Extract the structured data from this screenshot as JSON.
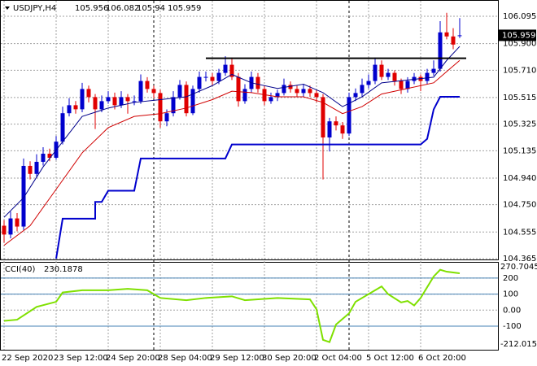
{
  "chart_data": [
    {
      "type": "candlestick",
      "symbol": "USDJPY,H4",
      "up_color": "#0000cd",
      "down_color": "#e00000",
      "open": [
        104.6,
        104.537,
        104.652,
        104.594,
        105.027,
        104.97,
        105.056,
        105.114,
        105.085,
        105.2,
        105.403,
        105.46,
        105.431,
        105.576,
        105.518,
        105.431,
        105.489,
        105.518,
        105.46,
        105.518,
        105.489,
        105.489,
        105.633,
        105.576,
        105.547,
        105.345,
        105.403,
        105.518,
        105.605,
        105.403,
        105.576,
        105.662,
        105.662,
        105.633,
        105.691,
        105.749,
        105.662,
        105.489,
        105.576,
        105.662,
        105.576,
        105.489,
        105.518,
        105.547,
        105.605,
        105.576,
        105.547,
        105.576,
        105.547,
        105.518,
        105.23,
        105.345,
        105.316,
        105.258,
        105.518,
        105.547,
        105.605,
        105.633,
        105.749,
        105.662,
        105.691,
        105.633,
        105.576,
        105.633,
        105.662,
        105.633,
        105.691,
        105.72,
        105.98,
        105.951,
        105.956
      ],
      "high": [
        104.64,
        104.7,
        104.69,
        105.08,
        105.06,
        105.11,
        105.16,
        105.15,
        105.24,
        105.45,
        105.51,
        105.49,
        105.62,
        105.6,
        105.54,
        105.53,
        105.56,
        105.55,
        105.56,
        105.54,
        105.53,
        105.68,
        105.66,
        105.6,
        105.57,
        105.43,
        105.56,
        105.64,
        105.63,
        105.6,
        105.7,
        105.7,
        105.69,
        105.72,
        105.81,
        105.8,
        105.69,
        105.61,
        105.7,
        105.69,
        105.6,
        105.55,
        105.57,
        105.65,
        105.63,
        105.6,
        105.61,
        105.6,
        105.57,
        105.54,
        105.37,
        105.38,
        105.34,
        105.55,
        105.58,
        105.65,
        105.68,
        105.8,
        105.78,
        105.72,
        105.71,
        105.65,
        105.66,
        105.69,
        105.68,
        105.72,
        105.78,
        106.06,
        106.12,
        106.01,
        106.082
      ],
      "low": [
        104.48,
        104.51,
        104.56,
        104.57,
        104.93,
        104.95,
        105.03,
        105.06,
        105.07,
        105.18,
        105.38,
        105.4,
        105.41,
        105.48,
        105.29,
        105.41,
        105.47,
        105.43,
        105.44,
        105.4,
        105.46,
        105.47,
        105.55,
        105.51,
        105.3,
        105.31,
        105.38,
        105.5,
        105.38,
        105.39,
        105.55,
        105.63,
        105.6,
        105.61,
        105.67,
        105.64,
        105.45,
        105.47,
        105.55,
        105.55,
        105.46,
        105.47,
        105.49,
        105.53,
        105.55,
        105.52,
        105.52,
        105.52,
        105.48,
        104.93,
        105.13,
        105.28,
        105.22,
        105.24,
        105.49,
        105.52,
        105.58,
        105.61,
        105.64,
        105.64,
        105.6,
        105.54,
        105.55,
        105.61,
        105.56,
        105.61,
        105.67,
        105.7,
        105.93,
        105.86,
        105.94
      ],
      "close": [
        104.537,
        104.652,
        104.594,
        105.027,
        104.97,
        105.056,
        105.114,
        105.085,
        105.2,
        105.403,
        105.46,
        105.431,
        105.576,
        105.518,
        105.431,
        105.489,
        105.518,
        105.46,
        105.518,
        105.489,
        105.489,
        105.633,
        105.576,
        105.547,
        105.345,
        105.403,
        105.518,
        105.605,
        105.403,
        105.576,
        105.662,
        105.662,
        105.633,
        105.691,
        105.749,
        105.662,
        105.489,
        105.576,
        105.662,
        105.576,
        105.489,
        105.518,
        105.547,
        105.605,
        105.576,
        105.547,
        105.576,
        105.547,
        105.518,
        105.23,
        105.345,
        105.316,
        105.258,
        105.518,
        105.547,
        105.605,
        105.633,
        105.749,
        105.662,
        105.691,
        105.633,
        105.576,
        105.633,
        105.662,
        105.633,
        105.691,
        105.72,
        105.98,
        105.951,
        105.893,
        105.959
      ],
      "lines": [
        {
          "color": "#0000cd",
          "width": 2,
          "x": [
            8,
            9,
            14,
            14,
            15,
            16,
            20,
            21,
            34,
            35,
            64,
            65,
            66,
            67,
            70
          ],
          "values": [
            104.365,
            104.65,
            104.65,
            104.77,
            104.77,
            104.85,
            104.85,
            105.08,
            105.08,
            105.18,
            105.18,
            105.22,
            105.43,
            105.52,
            105.52
          ]
        },
        {
          "color": "#00008b",
          "width": 1,
          "x": [
            0,
            3,
            6,
            9,
            12,
            16,
            20,
            24,
            28,
            32,
            35,
            38,
            42,
            46,
            49,
            52,
            55,
            58,
            62,
            66,
            68,
            70
          ],
          "values": [
            104.66,
            104.8,
            105.02,
            105.2,
            105.38,
            105.44,
            105.48,
            105.5,
            105.52,
            105.6,
            105.68,
            105.62,
            105.58,
            105.61,
            105.55,
            105.45,
            105.52,
            105.62,
            105.64,
            105.66,
            105.78,
            105.88
          ]
        },
        {
          "color": "#d00000",
          "width": 1,
          "x": [
            0,
            4,
            8,
            12,
            16,
            20,
            24,
            28,
            32,
            35,
            38,
            42,
            46,
            49,
            52,
            55,
            58,
            62,
            66,
            68,
            70
          ],
          "values": [
            104.46,
            104.6,
            104.86,
            105.12,
            105.3,
            105.38,
            105.4,
            105.44,
            105.5,
            105.56,
            105.55,
            105.52,
            105.52,
            105.48,
            105.4,
            105.45,
            105.54,
            105.58,
            105.62,
            105.7,
            105.78
          ]
        },
        {
          "color": "#000000",
          "width": 2,
          "x": [
            31,
            71
          ],
          "values": [
            105.795,
            105.795
          ]
        }
      ],
      "ylim": [
        104.365,
        106.095
      ],
      "yticks": [
        106.095,
        {
          "value": 105.9,
          "label": "105.900"
        },
        {
          "value": 105.71,
          "label": "105.710"
        },
        105.515,
        105.325,
        105.135,
        {
          "value": 104.94,
          "label": "104.940"
        },
        {
          "value": 104.75,
          "label": "104.750"
        },
        104.555,
        104.365
      ],
      "xticks": [
        {
          "value": 0,
          "label": "22 Sep 2020"
        },
        {
          "value": 8,
          "label": "23 Sep 12:00"
        },
        {
          "value": 16,
          "label": "24 Sep 20:00"
        },
        {
          "value": 24,
          "label": "28 Sep 04:00"
        },
        {
          "value": 32,
          "label": "29 Sep 12:00"
        },
        {
          "value": 40,
          "label": "30 Sep 20:00"
        },
        {
          "value": 48,
          "label": "2 Oct 04:00"
        },
        {
          "value": 56,
          "label": "5 Oct 12:00"
        },
        {
          "value": 64,
          "label": "6 Oct 20:00"
        }
      ],
      "grid": true
    },
    {
      "type": "line",
      "name": "CCI(40)",
      "color": "#7fe000",
      "x": [
        0,
        2,
        5,
        8,
        9,
        12,
        16,
        19,
        22,
        24,
        28,
        31,
        35,
        37,
        42,
        47,
        48,
        49,
        50,
        51,
        53,
        54,
        57,
        58,
        59,
        61,
        62,
        63,
        64,
        66,
        67,
        68,
        70
      ],
      "values": [
        -67,
        -60,
        20,
        52,
        110,
        124,
        124,
        133,
        124,
        76,
        62,
        76,
        86,
        62,
        76,
        67,
        5,
        -186,
        -200,
        -90,
        -20,
        52,
        124,
        148,
        100,
        48,
        57,
        29,
        76,
        210,
        252,
        240,
        230.1878
      ],
      "ylim": [
        -212.0152,
        270.7045
      ],
      "yticks": [
        200,
        100,
        {
          "value": 0,
          "label": "0.00"
        },
        -100
      ],
      "levels": [
        200,
        100,
        -100
      ]
    }
  ]
}
